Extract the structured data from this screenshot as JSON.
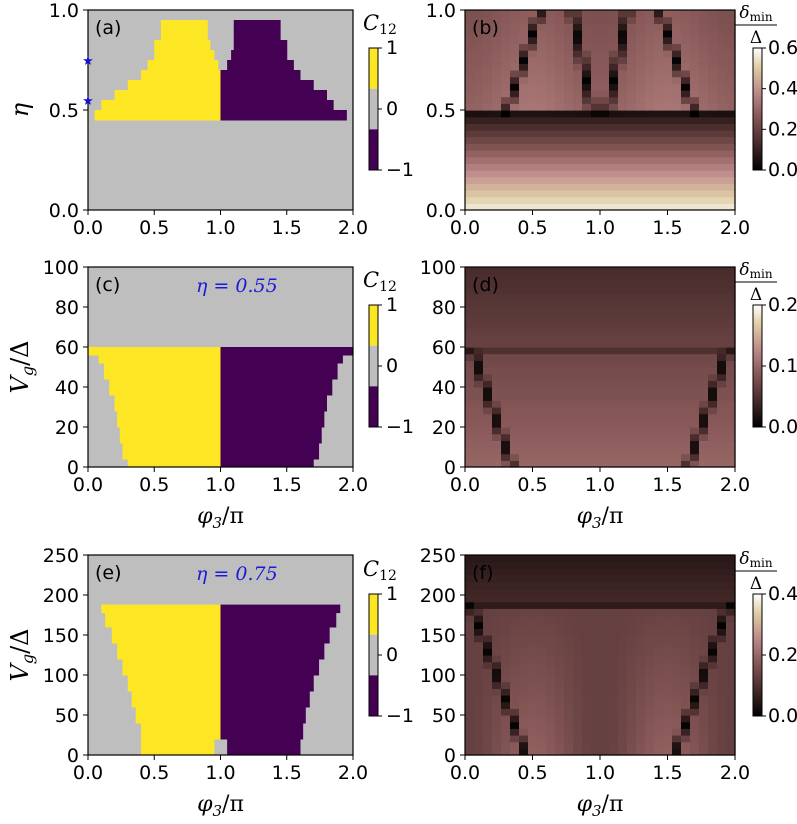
{
  "colors": {
    "yellow": "#fde725",
    "gray": "#bebebe",
    "purple": "#440154",
    "marker": "#1414d2",
    "eta_text": "#1a1adb"
  },
  "chart_data": [
    {
      "id": "a",
      "type": "heatmap",
      "panel_label": "(a)",
      "xlim": [
        0,
        2
      ],
      "ylim": [
        0,
        1
      ],
      "xticks": [
        "0.0",
        "0.5",
        "1.0",
        "1.5",
        "2.0"
      ],
      "yticks": [
        "0.0",
        "0.5",
        "1.0"
      ],
      "ylabel": "η",
      "xlabel": "",
      "colorbar": {
        "label": "C12",
        "ticks": [
          "1",
          "0",
          "−1"
        ]
      },
      "regions": {
        "description": "value of C12 (+1 yellow, 0 gray, -1 purple); each entry is [y_low, y_high, x_low, x_high, value] in data units",
        "rects": [
          [
            0.45,
            0.95,
            0.0,
            2.0,
            0
          ],
          [
            0.45,
            0.5,
            0.05,
            1.0,
            1
          ],
          [
            0.5,
            0.55,
            0.1,
            1.0,
            1
          ],
          [
            0.55,
            0.6,
            0.2,
            1.0,
            1
          ],
          [
            0.6,
            0.65,
            0.3,
            1.0,
            1
          ],
          [
            0.65,
            0.7,
            0.4,
            1.0,
            1
          ],
          [
            0.7,
            0.75,
            0.45,
            0.98,
            1
          ],
          [
            0.75,
            0.8,
            0.5,
            0.95,
            1
          ],
          [
            0.8,
            0.85,
            0.5,
            0.92,
            1
          ],
          [
            0.85,
            0.9,
            0.55,
            0.9,
            1
          ],
          [
            0.9,
            0.95,
            0.55,
            0.9,
            1
          ],
          [
            0.45,
            0.5,
            1.0,
            1.95,
            -1
          ],
          [
            0.5,
            0.55,
            1.0,
            1.85,
            -1
          ],
          [
            0.55,
            0.6,
            1.0,
            1.8,
            -1
          ],
          [
            0.6,
            0.65,
            1.0,
            1.7,
            -1
          ],
          [
            0.65,
            0.7,
            1.0,
            1.6,
            -1
          ],
          [
            0.7,
            0.75,
            1.05,
            1.55,
            -1
          ],
          [
            0.75,
            0.8,
            1.08,
            1.5,
            -1
          ],
          [
            0.8,
            0.85,
            1.1,
            1.5,
            -1
          ],
          [
            0.85,
            0.9,
            1.1,
            1.45,
            -1
          ],
          [
            0.9,
            0.95,
            1.1,
            1.45,
            -1
          ]
        ]
      },
      "markers": [
        {
          "x": 0.0,
          "y": 0.55
        },
        {
          "x": 0.0,
          "y": 0.75
        }
      ]
    },
    {
      "id": "b",
      "type": "heatmap",
      "panel_label": "(b)",
      "xlim": [
        0,
        2
      ],
      "ylim": [
        0,
        1
      ],
      "xticks": [
        "0.0",
        "0.5",
        "1.0",
        "1.5",
        "2.0"
      ],
      "yticks": [
        "0.0",
        "0.5",
        "1.0"
      ],
      "colorbar": {
        "label_num": "δmin",
        "label_den": "Δ",
        "range": [
          0,
          0.6
        ],
        "ticks": [
          "0.6",
          "0.4",
          "0.2",
          "0.0"
        ]
      },
      "field": "delta_min/Delta vs (phi3/pi, eta); bright gaps at small eta, closing line near eta 0.48, arched zero lines above"
    },
    {
      "id": "c",
      "type": "heatmap",
      "panel_label": "(c)",
      "annotation": "η = 0.55",
      "xlim": [
        0,
        2
      ],
      "ylim": [
        0,
        100
      ],
      "xticks": [
        "0.0",
        "0.5",
        "1.0",
        "1.5",
        "2.0"
      ],
      "yticks": [
        "0",
        "20",
        "40",
        "60",
        "80",
        "100"
      ],
      "ylabel": "Vg/Δ",
      "xlabel": "φ3/π",
      "colorbar": {
        "label": "C12",
        "ticks": [
          "1",
          "0",
          "−1"
        ]
      },
      "regions": {
        "description": "[y_low, y_high, x_low, x_high, value]",
        "rects": [
          [
            0,
            60,
            0.0,
            2.0,
            0
          ],
          [
            56,
            60,
            0.0,
            1.0,
            1
          ],
          [
            52,
            56,
            0.08,
            1.0,
            1
          ],
          [
            44,
            52,
            0.12,
            1.0,
            1
          ],
          [
            36,
            44,
            0.16,
            1.0,
            1
          ],
          [
            28,
            36,
            0.2,
            1.0,
            1
          ],
          [
            20,
            28,
            0.22,
            1.0,
            1
          ],
          [
            12,
            20,
            0.24,
            1.0,
            1
          ],
          [
            4,
            12,
            0.26,
            1.0,
            1
          ],
          [
            0,
            4,
            0.3,
            1.0,
            1
          ],
          [
            56,
            60,
            1.0,
            2.0,
            -1
          ],
          [
            52,
            56,
            1.0,
            1.92,
            -1
          ],
          [
            44,
            52,
            1.0,
            1.88,
            -1
          ],
          [
            36,
            44,
            1.0,
            1.84,
            -1
          ],
          [
            28,
            36,
            1.0,
            1.8,
            -1
          ],
          [
            20,
            28,
            1.0,
            1.78,
            -1
          ],
          [
            12,
            20,
            1.0,
            1.76,
            -1
          ],
          [
            4,
            12,
            1.0,
            1.74,
            -1
          ],
          [
            0,
            4,
            1.0,
            1.7,
            -1
          ]
        ]
      }
    },
    {
      "id": "d",
      "type": "heatmap",
      "panel_label": "(d)",
      "xlim": [
        0,
        2
      ],
      "ylim": [
        0,
        100
      ],
      "xticks": [
        "0.0",
        "0.5",
        "1.0",
        "1.5",
        "2.0"
      ],
      "yticks": [
        "0",
        "20",
        "40",
        "60",
        "80",
        "100"
      ],
      "xlabel": "φ3/π",
      "colorbar": {
        "label_num": "δmin",
        "label_den": "Δ",
        "range": [
          0,
          0.2
        ],
        "ticks": [
          "0.2",
          "0.1",
          "0.0"
        ]
      }
    },
    {
      "id": "e",
      "type": "heatmap",
      "panel_label": "(e)",
      "annotation": "η = 0.75",
      "xlim": [
        0,
        2
      ],
      "ylim": [
        0,
        250
      ],
      "xticks": [
        "0.0",
        "0.5",
        "1.0",
        "1.5",
        "2.0"
      ],
      "yticks": [
        "0",
        "50",
        "100",
        "150",
        "200",
        "250"
      ],
      "ylabel": "Vg/Δ",
      "xlabel": "φ3/π",
      "colorbar": {
        "label": "C12",
        "ticks": [
          "1",
          "0",
          "−1"
        ]
      },
      "regions": {
        "description": "[y_low, y_high, x_low, x_high, value]",
        "rects": [
          [
            0,
            188,
            0.0,
            2.0,
            0
          ],
          [
            178,
            188,
            0.1,
            1.0,
            1
          ],
          [
            160,
            178,
            0.13,
            1.0,
            1
          ],
          [
            140,
            160,
            0.18,
            1.0,
            1
          ],
          [
            120,
            140,
            0.22,
            1.0,
            1
          ],
          [
            100,
            120,
            0.26,
            1.0,
            1
          ],
          [
            80,
            100,
            0.3,
            1.0,
            1
          ],
          [
            60,
            80,
            0.33,
            1.0,
            1
          ],
          [
            40,
            60,
            0.36,
            1.0,
            1
          ],
          [
            20,
            40,
            0.4,
            1.0,
            1
          ],
          [
            0,
            20,
            0.4,
            0.95,
            1
          ],
          [
            178,
            188,
            1.0,
            1.9,
            -1
          ],
          [
            160,
            178,
            1.0,
            1.87,
            -1
          ],
          [
            140,
            160,
            1.0,
            1.82,
            -1
          ],
          [
            120,
            140,
            1.0,
            1.78,
            -1
          ],
          [
            100,
            120,
            1.0,
            1.74,
            -1
          ],
          [
            80,
            100,
            1.0,
            1.7,
            -1
          ],
          [
            60,
            80,
            1.0,
            1.67,
            -1
          ],
          [
            40,
            60,
            1.0,
            1.64,
            -1
          ],
          [
            20,
            40,
            1.0,
            1.62,
            -1
          ],
          [
            0,
            20,
            1.05,
            1.6,
            -1
          ]
        ]
      }
    },
    {
      "id": "f",
      "type": "heatmap",
      "panel_label": "(f)",
      "xlim": [
        0,
        2
      ],
      "ylim": [
        0,
        250
      ],
      "xticks": [
        "0.0",
        "0.5",
        "1.0",
        "1.5",
        "2.0"
      ],
      "yticks": [
        "0",
        "50",
        "100",
        "150",
        "200",
        "250"
      ],
      "xlabel": "φ3/π",
      "colorbar": {
        "label_num": "δmin",
        "label_den": "Δ",
        "range": [
          0,
          0.4
        ],
        "ticks": [
          "0.4",
          "0.2",
          "0.0"
        ]
      }
    }
  ]
}
